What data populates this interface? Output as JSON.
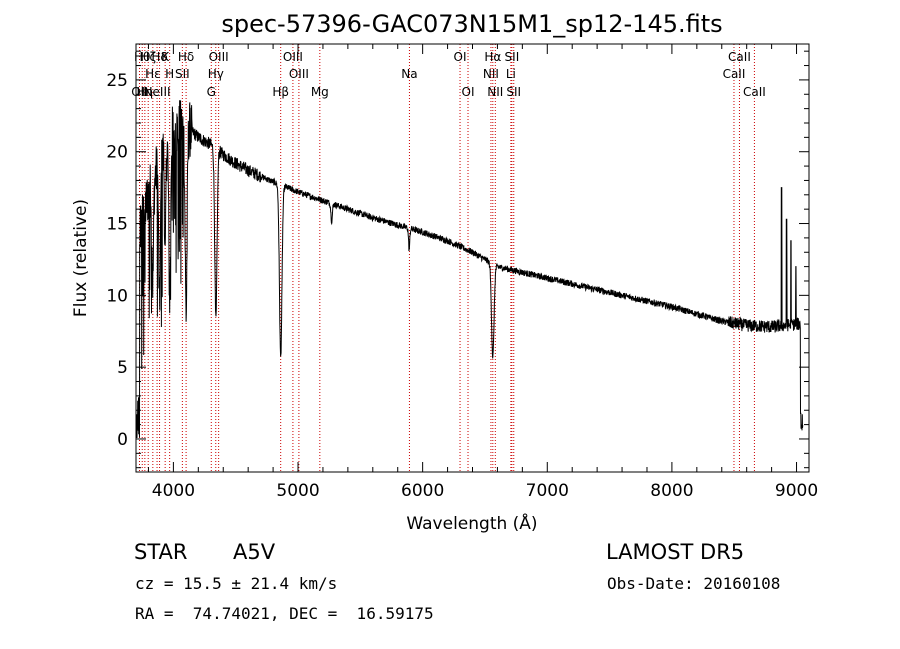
{
  "chart_data": {
    "type": "line",
    "title": "spec-57396-GAC073N15M1_sp12-145.fits",
    "xlabel": "Wavelength (Å)",
    "ylabel": "Flux (relative)",
    "xlim": [
      3700,
      9100
    ],
    "ylim": [
      -2.3,
      27.5
    ],
    "xticks": [
      4000,
      5000,
      6000,
      7000,
      8000,
      9000
    ],
    "yticks": [
      0,
      5,
      10,
      15,
      20,
      25
    ],
    "continuum_points": [
      [
        3700,
        13.5
      ],
      [
        3800,
        17
      ],
      [
        3900,
        19.5
      ],
      [
        4000,
        21.5
      ],
      [
        4100,
        21.8
      ],
      [
        4200,
        21.0
      ],
      [
        4300,
        20.5
      ],
      [
        4400,
        19.8
      ],
      [
        4500,
        19.2
      ],
      [
        4600,
        18.7
      ],
      [
        4700,
        18.3
      ],
      [
        4800,
        17.9
      ],
      [
        5000,
        17.2
      ],
      [
        5200,
        16.6
      ],
      [
        5400,
        16.0
      ],
      [
        5600,
        15.4
      ],
      [
        5800,
        14.9
      ],
      [
        6000,
        14.4
      ],
      [
        6200,
        13.8
      ],
      [
        6400,
        13.0
      ],
      [
        6600,
        12.0
      ],
      [
        6800,
        11.6
      ],
      [
        7000,
        11.2
      ],
      [
        7200,
        10.8
      ],
      [
        7400,
        10.4
      ],
      [
        7600,
        10.0
      ],
      [
        7800,
        9.6
      ],
      [
        8000,
        9.2
      ],
      [
        8200,
        8.7
      ],
      [
        8400,
        8.2
      ],
      [
        8600,
        7.9
      ],
      [
        8800,
        7.8
      ],
      [
        9000,
        8.0
      ],
      [
        9050,
        8.0
      ]
    ],
    "absorption_features": [
      {
        "x": 3835,
        "depth": 7,
        "width": 6
      },
      {
        "x": 3889,
        "depth": 10,
        "width": 7
      },
      {
        "x": 3934,
        "depth": 8,
        "width": 5
      },
      {
        "x": 3970,
        "depth": 11,
        "width": 7
      },
      {
        "x": 4102,
        "depth": 13,
        "width": 8
      },
      {
        "x": 4341,
        "depth": 12,
        "width": 9
      },
      {
        "x": 4861,
        "depth": 12,
        "width": 10
      },
      {
        "x": 5270,
        "depth": 1.2,
        "width": 6
      },
      {
        "x": 5892,
        "depth": 1.5,
        "width": 5
      },
      {
        "x": 6563,
        "depth": 6.5,
        "width": 10
      }
    ],
    "red_end_spikes": [
      {
        "x": 8880,
        "value": 17.5
      },
      {
        "x": 8920,
        "value": 15.3
      },
      {
        "x": 8955,
        "value": 13.8
      },
      {
        "x": 8995,
        "value": 12.0
      }
    ],
    "line_markers": [
      {
        "x": 3728,
        "label": "OII",
        "row": 3
      },
      {
        "x": 3750,
        "label": "Hθ",
        "row": 1
      },
      {
        "x": 3771,
        "label": "Hη",
        "row": 3
      },
      {
        "x": 3798,
        "label": "Hζ",
        "row": 1
      },
      {
        "x": 3835,
        "label": "Hε",
        "row": 2
      },
      {
        "x": 3869,
        "label": "NeIII",
        "row": 3
      },
      {
        "x": 3889,
        "label": "Hδ",
        "row": 1
      },
      {
        "x": 3934,
        "label": "K",
        "row": 1
      },
      {
        "x": 3970,
        "label": "H",
        "row": 2
      },
      {
        "x": 4072,
        "label": "SII",
        "row": 2
      },
      {
        "x": 4102,
        "label": "Hδ",
        "row": 1
      },
      {
        "x": 4304,
        "label": "G",
        "row": 3
      },
      {
        "x": 4340,
        "label": "Hγ",
        "row": 2
      },
      {
        "x": 4363,
        "label": "OIII",
        "row": 1
      },
      {
        "x": 4861,
        "label": "Hβ",
        "row": 3
      },
      {
        "x": 4959,
        "label": "OIII",
        "row": 1
      },
      {
        "x": 5007,
        "label": "OIII",
        "row": 2
      },
      {
        "x": 5175,
        "label": "Mg",
        "row": 3
      },
      {
        "x": 5894,
        "label": "Na",
        "row": 2
      },
      {
        "x": 6300,
        "label": "OI",
        "row": 1
      },
      {
        "x": 6364,
        "label": "OI",
        "row": 3
      },
      {
        "x": 6548,
        "label": "NII",
        "row": 2
      },
      {
        "x": 6563,
        "label": "Hα",
        "row": 1
      },
      {
        "x": 6583,
        "label": "NII",
        "row": 3
      },
      {
        "x": 6708,
        "label": "Li",
        "row": 2
      },
      {
        "x": 6716,
        "label": "SII",
        "row": 1
      },
      {
        "x": 6731,
        "label": "SII",
        "row": 3
      },
      {
        "x": 8498,
        "label": "CaII",
        "row": 2
      },
      {
        "x": 8542,
        "label": "CaII",
        "row": 1
      },
      {
        "x": 8662,
        "label": "CaII",
        "row": 3
      }
    ]
  },
  "info": {
    "object_class": "STAR",
    "subclass": "A5V",
    "survey": "LAMOST DR5",
    "redshift": "cz = 15.5 ± 21.4 km/s",
    "obs_date": "Obs-Date: 20160108",
    "coords": "RA =  74.74021, DEC =  16.59175"
  },
  "colors": {
    "spectrum": "#000000",
    "marker_line": "#cc0000",
    "axes": "#000000"
  }
}
